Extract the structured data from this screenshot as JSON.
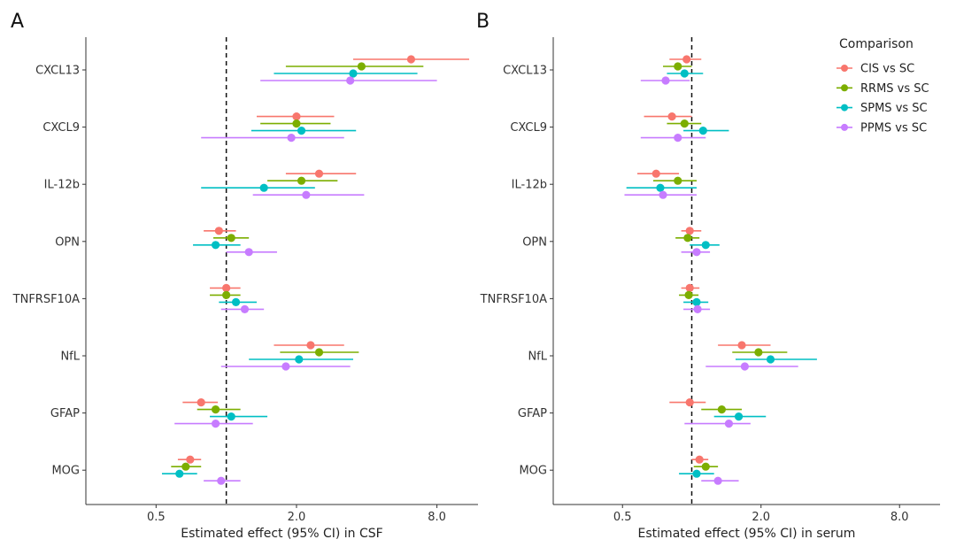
{
  "chart_data": [
    {
      "type": "scatter",
      "panel": "A",
      "xlabel": "Estimated effect (95% CI) in CSF",
      "x_scale": "log2",
      "xlim": [
        0.25,
        12
      ],
      "xticks": [
        0.5,
        2.0,
        8.0
      ],
      "xtick_labels": [
        "0.5",
        "2.0",
        "8.0"
      ],
      "reference_line": 1.0,
      "grid": false,
      "categories": [
        "CXCL13",
        "CXCL9",
        "IL-12b",
        "OPN",
        "TNFRSF10A",
        "NfL",
        "GFAP",
        "MOG"
      ],
      "series": [
        {
          "name": "CIS vs SC",
          "color": "#F8766D",
          "points": [
            [
              6.2,
              3.5,
              11.0
            ],
            [
              2.0,
              1.35,
              2.9
            ],
            [
              2.5,
              1.8,
              3.6
            ],
            [
              0.93,
              0.8,
              1.1
            ],
            [
              1.0,
              0.85,
              1.15
            ],
            [
              2.3,
              1.6,
              3.2
            ],
            [
              0.78,
              0.65,
              0.92
            ],
            [
              0.7,
              0.62,
              0.78
            ]
          ]
        },
        {
          "name": "RRMS vs SC",
          "color": "#7CAE00",
          "points": [
            [
              3.8,
              1.8,
              7.0
            ],
            [
              2.0,
              1.4,
              2.8
            ],
            [
              2.1,
              1.5,
              3.0
            ],
            [
              1.05,
              0.88,
              1.25
            ],
            [
              1.0,
              0.85,
              1.15
            ],
            [
              2.5,
              1.7,
              3.7
            ],
            [
              0.9,
              0.75,
              1.15
            ],
            [
              0.67,
              0.58,
              0.78
            ]
          ]
        },
        {
          "name": "SPMS vs SC",
          "color": "#00BFC4",
          "points": [
            [
              3.5,
              1.6,
              6.6
            ],
            [
              2.1,
              1.28,
              3.6
            ],
            [
              1.45,
              0.78,
              2.4
            ],
            [
              0.9,
              0.72,
              1.15
            ],
            [
              1.1,
              0.93,
              1.35
            ],
            [
              2.05,
              1.25,
              3.5
            ],
            [
              1.05,
              0.85,
              1.5
            ],
            [
              0.63,
              0.53,
              0.75
            ]
          ]
        },
        {
          "name": "PPMS vs SC",
          "color": "#C77CFF",
          "points": [
            [
              3.4,
              1.4,
              8.0
            ],
            [
              1.9,
              0.78,
              3.2
            ],
            [
              2.2,
              1.3,
              3.9
            ],
            [
              1.25,
              1.0,
              1.65
            ],
            [
              1.2,
              0.95,
              1.45
            ],
            [
              1.8,
              0.95,
              3.4
            ],
            [
              0.9,
              0.6,
              1.3
            ],
            [
              0.95,
              0.8,
              1.15
            ]
          ]
        }
      ]
    },
    {
      "type": "scatter",
      "panel": "B",
      "xlabel": "Estimated effect (95% CI) in serum",
      "x_scale": "log2",
      "xlim": [
        0.25,
        12
      ],
      "xticks": [
        0.5,
        2.0,
        8.0
      ],
      "xtick_labels": [
        "0.5",
        "2.0",
        "8.0"
      ],
      "reference_line": 1.0,
      "grid": false,
      "legend": {
        "title": "Comparison",
        "position": "top-right"
      },
      "categories": [
        "CXCL13",
        "CXCL9",
        "IL-12b",
        "OPN",
        "TNFRSF10A",
        "NfL",
        "GFAP",
        "MOG"
      ],
      "series": [
        {
          "name": "CIS vs SC",
          "color": "#F8766D",
          "points": [
            [
              0.95,
              0.8,
              1.1
            ],
            [
              0.82,
              0.62,
              1.0
            ],
            [
              0.7,
              0.58,
              0.88
            ],
            [
              0.98,
              0.9,
              1.1
            ],
            [
              0.98,
              0.9,
              1.08
            ],
            [
              1.65,
              1.3,
              2.2
            ],
            [
              0.98,
              0.8,
              1.15
            ],
            [
              1.08,
              1.0,
              1.18
            ]
          ]
        },
        {
          "name": "RRMS vs SC",
          "color": "#7CAE00",
          "points": [
            [
              0.87,
              0.75,
              1.0
            ],
            [
              0.93,
              0.78,
              1.1
            ],
            [
              0.87,
              0.68,
              1.05
            ],
            [
              0.96,
              0.85,
              1.08
            ],
            [
              0.97,
              0.88,
              1.07
            ],
            [
              1.95,
              1.5,
              2.6
            ],
            [
              1.35,
              1.1,
              1.65
            ],
            [
              1.15,
              1.02,
              1.3
            ]
          ]
        },
        {
          "name": "SPMS vs SC",
          "color": "#00BFC4",
          "points": [
            [
              0.93,
              0.78,
              1.12
            ],
            [
              1.12,
              0.92,
              1.45
            ],
            [
              0.73,
              0.52,
              1.05
            ],
            [
              1.15,
              0.98,
              1.32
            ],
            [
              1.05,
              0.92,
              1.18
            ],
            [
              2.2,
              1.55,
              3.5
            ],
            [
              1.6,
              1.25,
              2.1
            ],
            [
              1.05,
              0.88,
              1.25
            ]
          ]
        },
        {
          "name": "PPMS vs SC",
          "color": "#C77CFF",
          "points": [
            [
              0.77,
              0.6,
              0.98
            ],
            [
              0.87,
              0.6,
              1.15
            ],
            [
              0.75,
              0.51,
              1.05
            ],
            [
              1.05,
              0.9,
              1.2
            ],
            [
              1.06,
              0.92,
              1.2
            ],
            [
              1.7,
              1.15,
              2.9
            ],
            [
              1.45,
              0.93,
              1.8
            ],
            [
              1.3,
              1.1,
              1.6
            ]
          ]
        }
      ]
    }
  ]
}
